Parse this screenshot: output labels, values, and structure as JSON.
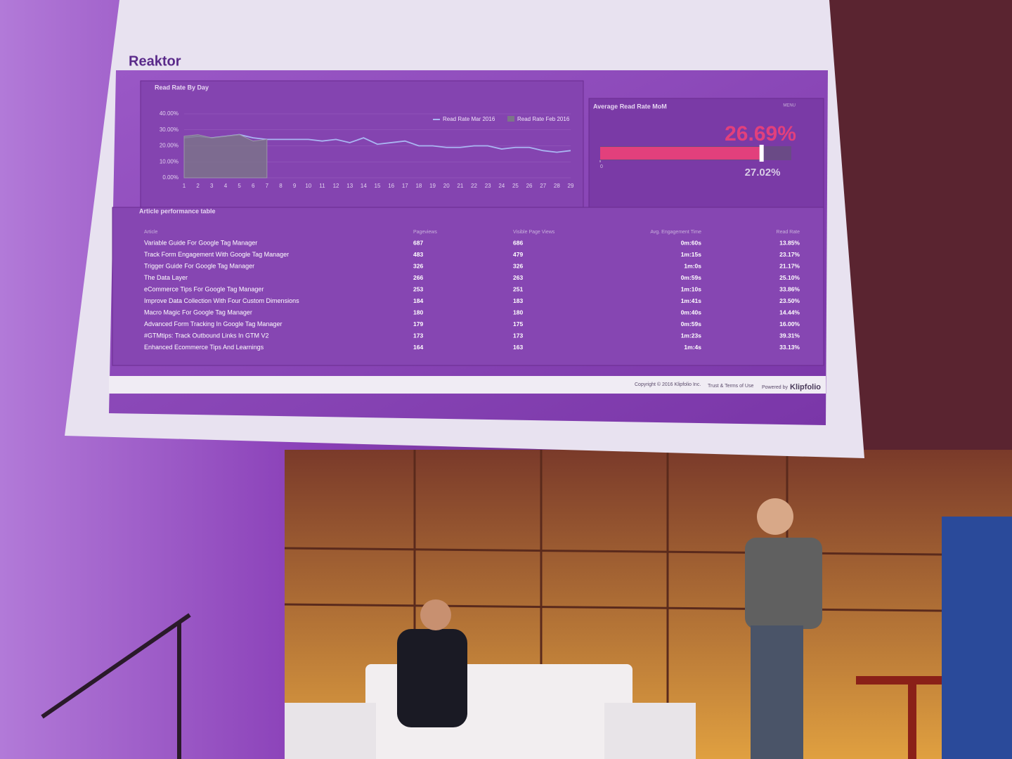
{
  "header": {
    "title": "Reaktor"
  },
  "chart_data": [
    {
      "type": "line",
      "title": "Read Rate By Day",
      "categories": [
        "1",
        "2",
        "3",
        "4",
        "5",
        "6",
        "7",
        "8",
        "9",
        "10",
        "11",
        "12",
        "13",
        "14",
        "15",
        "16",
        "17",
        "18",
        "19",
        "20",
        "21",
        "22",
        "23",
        "24",
        "25",
        "26",
        "27",
        "28",
        "29"
      ],
      "series": [
        {
          "name": "Read Rate Mar 2016",
          "color": "#aab6f2",
          "kind": "line",
          "values": [
            25,
            26,
            25,
            26,
            27,
            25,
            24,
            24,
            24,
            24,
            23,
            24,
            22,
            25,
            21,
            22,
            23,
            20,
            20,
            19,
            19,
            20,
            20,
            18,
            19,
            19,
            17,
            16,
            17
          ]
        },
        {
          "name": "Read Rate Feb 2016",
          "color": "#7c7688",
          "kind": "area",
          "values": [
            26,
            27,
            25,
            26,
            27,
            23,
            24,
            null,
            null,
            null,
            null,
            null,
            null,
            null,
            null,
            null,
            null,
            null,
            null,
            null,
            null,
            null,
            null,
            null,
            null,
            null,
            null,
            null,
            null
          ]
        }
      ],
      "ylim": [
        0,
        40
      ],
      "yticks": [
        {
          "value": 0,
          "label": "0.00%"
        },
        {
          "value": 10,
          "label": "10.00%"
        },
        {
          "value": 20,
          "label": "20.00%"
        },
        {
          "value": 30,
          "label": "30.00%"
        },
        {
          "value": 40,
          "label": "40.00%"
        }
      ],
      "legend": "top-right"
    },
    {
      "type": "bullet",
      "title": "Average Read Rate MoM",
      "menu": "MENU",
      "value": 26.69,
      "value_label": "26.69%",
      "target": 27.02,
      "target_label": "27.02%",
      "xlim": [
        0,
        32
      ],
      "xticks": [
        0
      ],
      "color": "#e2407c"
    }
  ],
  "table": {
    "title": "Article performance table",
    "columns": [
      "Article",
      "Pageviews",
      "Visible Page Views",
      "Avg. Engagement Time",
      "Read Rate"
    ],
    "rows": [
      [
        "Variable Guide For Google Tag Manager",
        "687",
        "686",
        "0m:60s",
        "13.85%"
      ],
      [
        "Track Form Engagement With Google Tag Manager",
        "483",
        "479",
        "1m:15s",
        "23.17%"
      ],
      [
        "Trigger Guide For Google Tag Manager",
        "326",
        "326",
        "1m:0s",
        "21.17%"
      ],
      [
        "The Data Layer",
        "266",
        "263",
        "0m:59s",
        "25.10%"
      ],
      [
        "eCommerce Tips For Google Tag Manager",
        "253",
        "251",
        "1m:10s",
        "33.86%"
      ],
      [
        "Improve Data Collection With Four Custom Dimensions",
        "184",
        "183",
        "1m:41s",
        "23.50%"
      ],
      [
        "Macro Magic For Google Tag Manager",
        "180",
        "180",
        "0m:40s",
        "14.44%"
      ],
      [
        "Advanced Form Tracking In Google Tag Manager",
        "179",
        "175",
        "0m:59s",
        "16.00%"
      ],
      [
        "#GTMtips: Track Outbound Links In GTM V2",
        "173",
        "173",
        "1m:23s",
        "39.31%"
      ],
      [
        "Enhanced Ecommerce Tips And Learnings",
        "164",
        "163",
        "1m:4s",
        "33.13%"
      ]
    ]
  },
  "footer": {
    "copyright": "Copyright © 2016 Klipfolio Inc.",
    "terms": "Trust & Terms of Use",
    "powered": "Powered by",
    "brand": "Klipfolio"
  }
}
